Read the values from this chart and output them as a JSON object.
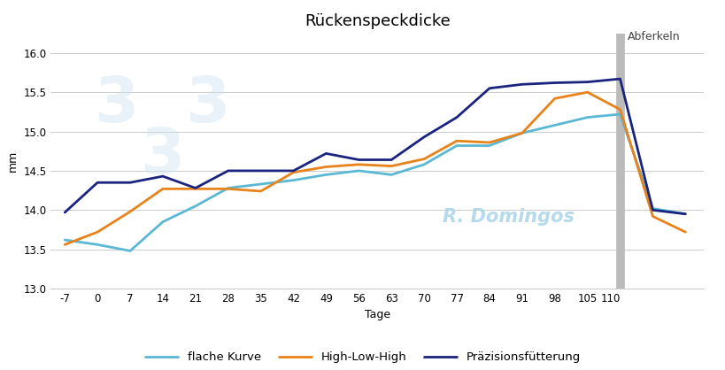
{
  "title": "Rückenspeckdicke",
  "xlabel": "Tage",
  "ylabel": "mm",
  "abferkeln_label": "Abferkeln",
  "abferkeln_x": 112,
  "xlim": [
    -10,
    130
  ],
  "ylim": [
    13.0,
    16.25
  ],
  "yticks": [
    13.0,
    13.5,
    14.0,
    14.5,
    15.0,
    15.5,
    16.0
  ],
  "xtick_positions": [
    -7,
    0,
    7,
    14,
    21,
    28,
    35,
    42,
    49,
    56,
    63,
    70,
    77,
    84,
    91,
    98,
    105,
    110,
    119,
    126
  ],
  "xtick_labels": [
    "-7",
    "0",
    "7",
    "14",
    "21",
    "28",
    "35",
    "42",
    "49",
    "56",
    "63",
    "70",
    "77",
    "84",
    "91",
    "98",
    "105",
    "110",
    "",
    ""
  ],
  "watermark_text": "R. Domingos",
  "legend": [
    "flache Kurve",
    "High-Low-High",
    "Präzisionsfütterung"
  ],
  "colors": {
    "flache": "#5BB8D4",
    "hlh": "#E8821A",
    "praezision": "#1A237E"
  },
  "flache_x": [
    -7,
    0,
    7,
    14,
    21,
    28,
    35,
    42,
    49,
    56,
    63,
    70,
    77,
    84,
    91,
    98,
    105,
    112,
    119,
    126
  ],
  "flache_y": [
    13.62,
    13.56,
    13.48,
    13.85,
    14.05,
    14.28,
    14.33,
    14.38,
    14.45,
    14.5,
    14.45,
    14.58,
    14.82,
    14.82,
    14.98,
    15.08,
    15.18,
    15.22,
    14.02,
    13.95
  ],
  "hlh_x": [
    -7,
    0,
    7,
    14,
    21,
    28,
    35,
    42,
    49,
    56,
    63,
    70,
    77,
    84,
    91,
    98,
    105,
    112,
    119,
    126
  ],
  "hlh_y": [
    13.56,
    13.72,
    13.98,
    14.27,
    14.27,
    14.27,
    14.24,
    14.48,
    14.55,
    14.58,
    14.56,
    14.65,
    14.88,
    14.86,
    14.98,
    15.42,
    15.5,
    15.28,
    13.92,
    13.72
  ],
  "praezision_x": [
    -7,
    0,
    7,
    14,
    21,
    28,
    35,
    42,
    49,
    56,
    63,
    70,
    77,
    84,
    91,
    98,
    105,
    112,
    119,
    126
  ],
  "praezision_y": [
    13.97,
    14.35,
    14.35,
    14.43,
    14.28,
    14.5,
    14.5,
    14.5,
    14.72,
    14.64,
    14.64,
    14.93,
    15.18,
    15.55,
    15.6,
    15.62,
    15.63,
    15.67,
    14.0,
    13.95
  ],
  "background_color": "#ffffff",
  "grid_color": "#cccccc",
  "line_width": 2.0,
  "title_fontsize": 13,
  "label_fontsize": 9,
  "tick_fontsize": 8.5,
  "legend_fontsize": 9.5
}
